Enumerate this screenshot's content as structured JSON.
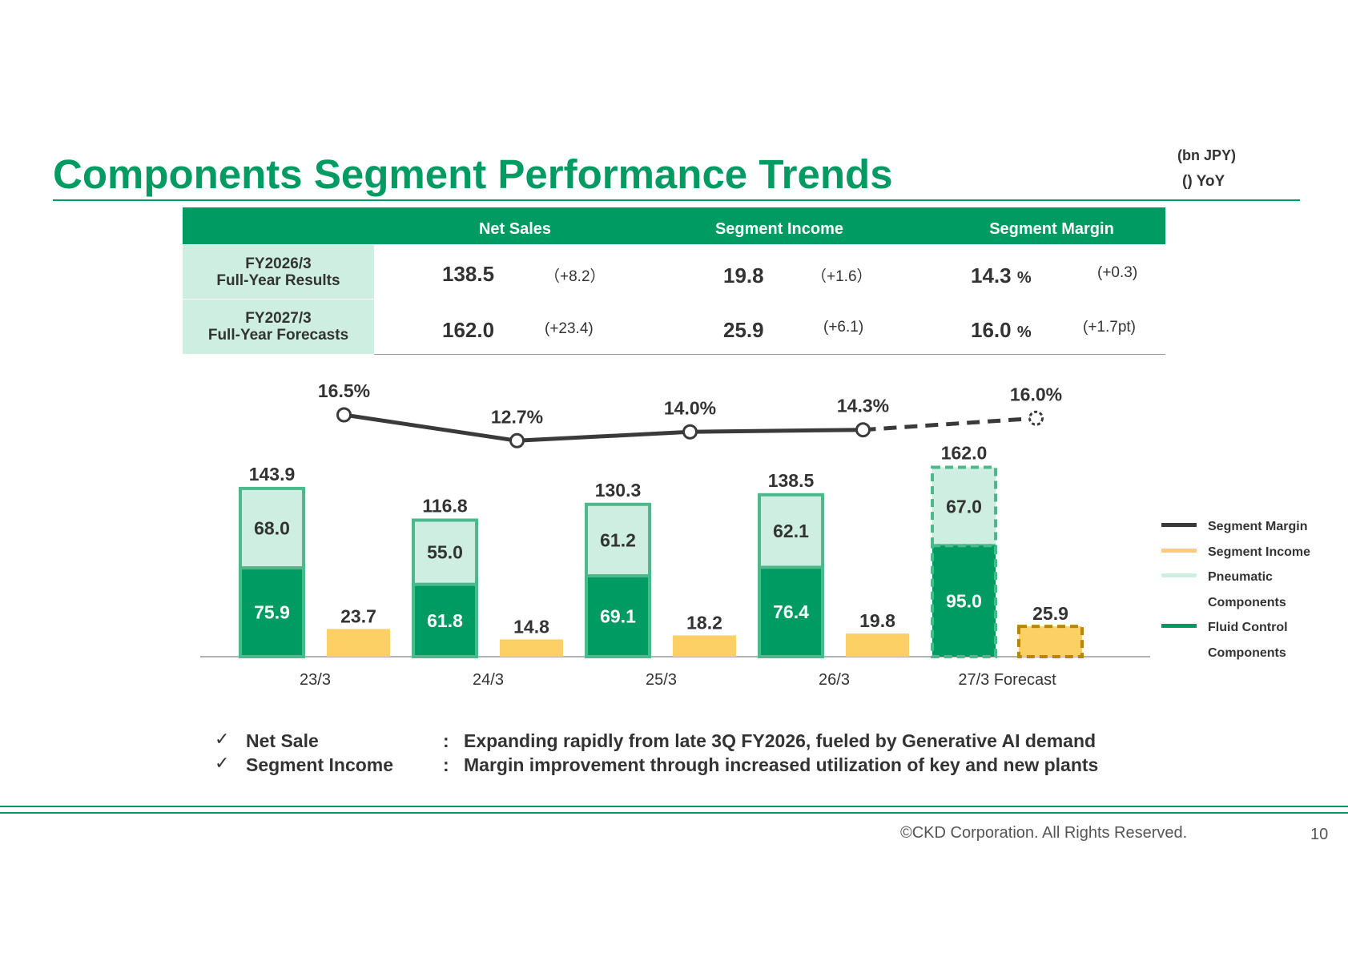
{
  "header": {
    "title": "Components Segment Performance Trends",
    "unit": "(bn JPY)",
    "yoy_note": "() YoY"
  },
  "summary_table": {
    "columns": [
      "Net Sales",
      "Segment Income",
      "Segment Margin"
    ],
    "rows": [
      {
        "label_line1": "FY2026/3",
        "label_line2": "Full-Year Results",
        "net_sales": "138.5",
        "net_sales_yoy": "（+8.2）",
        "income": "19.8",
        "income_yoy": "（+1.6）",
        "margin": "14.3",
        "margin_yoy": "(+0.3)"
      },
      {
        "label_line1": "FY2027/3",
        "label_line2": "Full-Year Forecasts",
        "net_sales": "162.0",
        "net_sales_yoy": "(+23.4)",
        "income": "25.9",
        "income_yoy": "(+6.1)",
        "margin": "16.0",
        "margin_yoy": "(+1.7pt)"
      }
    ],
    "pct_unit": "%"
  },
  "chart_data": {
    "type": "bar",
    "categories": [
      "23/3",
      "24/3",
      "25/3",
      "26/3",
      "27/3 Forecast"
    ],
    "forecast_index": 4,
    "series": [
      {
        "name": "Fluid Control Components",
        "values": [
          75.9,
          61.8,
          69.1,
          76.4,
          95.0
        ],
        "color": "#009b62",
        "stack": "sales"
      },
      {
        "name": "Pneumatic Components",
        "values": [
          68.0,
          55.0,
          61.2,
          62.1,
          67.0
        ],
        "color": "#cdeee0",
        "stack": "sales"
      },
      {
        "name": "Segment Income",
        "values": [
          23.7,
          14.8,
          18.2,
          19.8,
          25.9
        ],
        "color": "#fdd065",
        "stack": "income"
      },
      {
        "name": "Segment Margin",
        "values": [
          16.5,
          12.7,
          14.0,
          14.3,
          16.0
        ],
        "color": "#3a3a3a",
        "type": "line",
        "unit": "%"
      }
    ],
    "totals": [
      143.9,
      116.8,
      130.3,
      138.5,
      162.0
    ],
    "margin_labels": [
      "16.5%",
      "12.7%",
      "14.0%",
      "14.3%",
      "16.0%"
    ],
    "legend": [
      "Segment Margin",
      "Segment Income",
      "Pneumatic",
      "Components",
      "Fluid Control",
      "Components"
    ],
    "legend_position": "right",
    "grid": false
  },
  "bullets": [
    {
      "label": "Net Sale",
      "colon": ":",
      "text": "Expanding rapidly from late 3Q FY2026, fueled by Generative AI demand"
    },
    {
      "label": "Segment Income",
      "colon": ":",
      "text": "Margin improvement through increased utilization of key and new plants"
    }
  ],
  "footer": {
    "copyright": "©CKD Corporation. All Rights Reserved.",
    "page": "10"
  },
  "colors": {
    "brand_green": "#009b62",
    "light_green": "#cdeee0",
    "bar_green_border": "#4db88c",
    "income_yellow": "#fdd065",
    "forecast_income_border": "#b8860b",
    "margin_line": "#3a3a3a"
  }
}
